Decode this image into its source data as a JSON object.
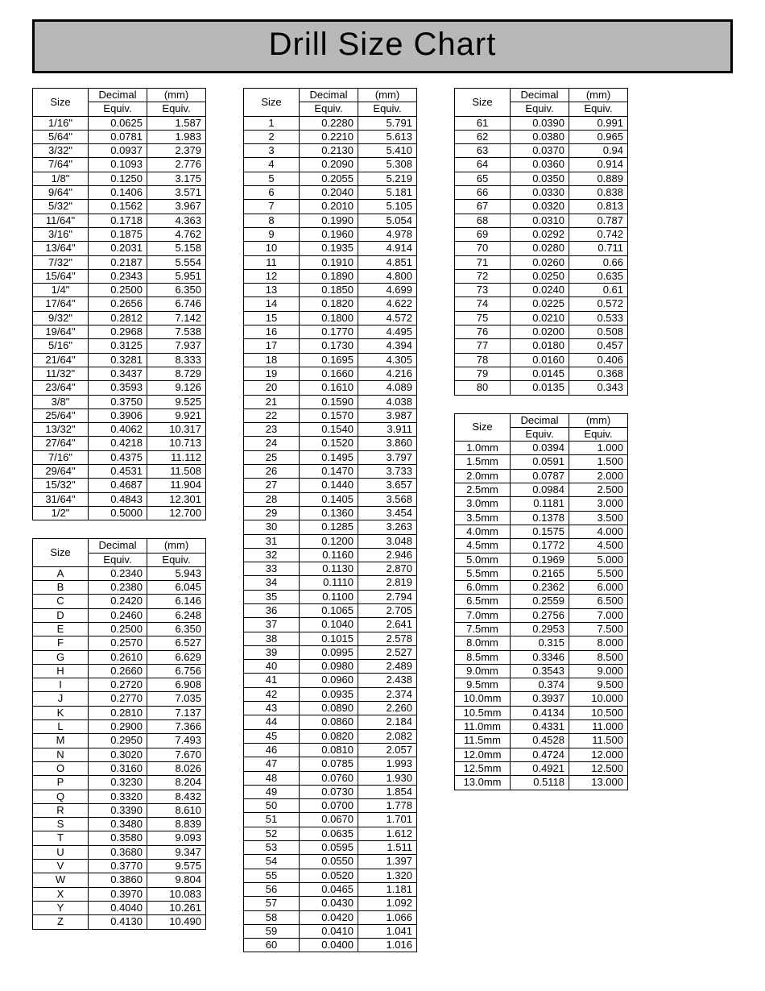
{
  "title": "Drill Size Chart",
  "headers": {
    "size": "Size",
    "decimal_l1": "Decimal",
    "decimal_l2": "Equiv.",
    "mm_l1": "(mm)",
    "mm_l2": "Equiv."
  },
  "tables": {
    "fractional": {
      "rows": [
        [
          "1/16\"",
          "0.0625",
          "1.587"
        ],
        [
          "5/64\"",
          "0.0781",
          "1.983"
        ],
        [
          "3/32\"",
          "0.0937",
          "2.379"
        ],
        [
          "7/64\"",
          "0.1093",
          "2.776"
        ],
        [
          "1/8\"",
          "0.1250",
          "3.175"
        ],
        [
          "9/64\"",
          "0.1406",
          "3.571"
        ],
        [
          "5/32\"",
          "0.1562",
          "3.967"
        ],
        [
          "11/64\"",
          "0.1718",
          "4.363"
        ],
        [
          "3/16\"",
          "0.1875",
          "4.762"
        ],
        [
          "13/64\"",
          "0.2031",
          "5.158"
        ],
        [
          "7/32\"",
          "0.2187",
          "5.554"
        ],
        [
          "15/64\"",
          "0.2343",
          "5.951"
        ],
        [
          "1/4\"",
          "0.2500",
          "6.350"
        ],
        [
          "17/64\"",
          "0.2656",
          "6.746"
        ],
        [
          "9/32\"",
          "0.2812",
          "7.142"
        ],
        [
          "19/64\"",
          "0.2968",
          "7.538"
        ],
        [
          "5/16\"",
          "0.3125",
          "7.937"
        ],
        [
          "21/64\"",
          "0.3281",
          "8.333"
        ],
        [
          "11/32\"",
          "0.3437",
          "8.729"
        ],
        [
          "23/64\"",
          "0.3593",
          "9.126"
        ],
        [
          "3/8\"",
          "0.3750",
          "9.525"
        ],
        [
          "25/64\"",
          "0.3906",
          "9.921"
        ],
        [
          "13/32\"",
          "0.4062",
          "10.317"
        ],
        [
          "27/64\"",
          "0.4218",
          "10.713"
        ],
        [
          "7/16\"",
          "0.4375",
          "11.112"
        ],
        [
          "29/64\"",
          "0.4531",
          "11.508"
        ],
        [
          "15/32\"",
          "0.4687",
          "11.904"
        ],
        [
          "31/64\"",
          "0.4843",
          "12.301"
        ],
        [
          "1/2\"",
          "0.5000",
          "12.700"
        ]
      ]
    },
    "letter": {
      "rows": [
        [
          "A",
          "0.2340",
          "5.943"
        ],
        [
          "B",
          "0.2380",
          "6.045"
        ],
        [
          "C",
          "0.2420",
          "6.146"
        ],
        [
          "D",
          "0.2460",
          "6.248"
        ],
        [
          "E",
          "0.2500",
          "6.350"
        ],
        [
          "F",
          "0.2570",
          "6.527"
        ],
        [
          "G",
          "0.2610",
          "6.629"
        ],
        [
          "H",
          "0.2660",
          "6.756"
        ],
        [
          "I",
          "0.2720",
          "6.908"
        ],
        [
          "J",
          "0.2770",
          "7.035"
        ],
        [
          "K",
          "0.2810",
          "7.137"
        ],
        [
          "L",
          "0.2900",
          "7.366"
        ],
        [
          "M",
          "0.2950",
          "7.493"
        ],
        [
          "N",
          "0.3020",
          "7.670"
        ],
        [
          "O",
          "0.3160",
          "8.026"
        ],
        [
          "P",
          "0.3230",
          "8.204"
        ],
        [
          "Q",
          "0.3320",
          "8.432"
        ],
        [
          "R",
          "0.3390",
          "8.610"
        ],
        [
          "S",
          "0.3480",
          "8.839"
        ],
        [
          "T",
          "0.3580",
          "9.093"
        ],
        [
          "U",
          "0.3680",
          "9.347"
        ],
        [
          "V",
          "0.3770",
          "9.575"
        ],
        [
          "W",
          "0.3860",
          "9.804"
        ],
        [
          "X",
          "0.3970",
          "10.083"
        ],
        [
          "Y",
          "0.4040",
          "10.261"
        ],
        [
          "Z",
          "0.4130",
          "10.490"
        ]
      ]
    },
    "number": {
      "rows": [
        [
          "1",
          "0.2280",
          "5.791"
        ],
        [
          "2",
          "0.2210",
          "5.613"
        ],
        [
          "3",
          "0.2130",
          "5.410"
        ],
        [
          "4",
          "0.2090",
          "5.308"
        ],
        [
          "5",
          "0.2055",
          "5.219"
        ],
        [
          "6",
          "0.2040",
          "5.181"
        ],
        [
          "7",
          "0.2010",
          "5.105"
        ],
        [
          "8",
          "0.1990",
          "5.054"
        ],
        [
          "9",
          "0.1960",
          "4.978"
        ],
        [
          "10",
          "0.1935",
          "4.914"
        ],
        [
          "11",
          "0.1910",
          "4.851"
        ],
        [
          "12",
          "0.1890",
          "4.800"
        ],
        [
          "13",
          "0.1850",
          "4.699"
        ],
        [
          "14",
          "0.1820",
          "4.622"
        ],
        [
          "15",
          "0.1800",
          "4.572"
        ],
        [
          "16",
          "0.1770",
          "4.495"
        ],
        [
          "17",
          "0.1730",
          "4.394"
        ],
        [
          "18",
          "0.1695",
          "4.305"
        ],
        [
          "19",
          "0.1660",
          "4.216"
        ],
        [
          "20",
          "0.1610",
          "4.089"
        ],
        [
          "21",
          "0.1590",
          "4.038"
        ],
        [
          "22",
          "0.1570",
          "3.987"
        ],
        [
          "23",
          "0.1540",
          "3.911"
        ],
        [
          "24",
          "0.1520",
          "3.860"
        ],
        [
          "25",
          "0.1495",
          "3.797"
        ],
        [
          "26",
          "0.1470",
          "3.733"
        ],
        [
          "27",
          "0.1440",
          "3.657"
        ],
        [
          "28",
          "0.1405",
          "3.568"
        ],
        [
          "29",
          "0.1360",
          "3.454"
        ],
        [
          "30",
          "0.1285",
          "3.263"
        ],
        [
          "31",
          "0.1200",
          "3.048"
        ],
        [
          "32",
          "0.1160",
          "2.946"
        ],
        [
          "33",
          "0.1130",
          "2.870"
        ],
        [
          "34",
          "0.1110",
          "2.819"
        ],
        [
          "35",
          "0.1100",
          "2.794"
        ],
        [
          "36",
          "0.1065",
          "2.705"
        ],
        [
          "37",
          "0.1040",
          "2.641"
        ],
        [
          "38",
          "0.1015",
          "2.578"
        ],
        [
          "39",
          "0.0995",
          "2.527"
        ],
        [
          "40",
          "0.0980",
          "2.489"
        ],
        [
          "41",
          "0.0960",
          "2.438"
        ],
        [
          "42",
          "0.0935",
          "2.374"
        ],
        [
          "43",
          "0.0890",
          "2.260"
        ],
        [
          "44",
          "0.0860",
          "2.184"
        ],
        [
          "45",
          "0.0820",
          "2.082"
        ],
        [
          "46",
          "0.0810",
          "2.057"
        ],
        [
          "47",
          "0.0785",
          "1.993"
        ],
        [
          "48",
          "0.0760",
          "1.930"
        ],
        [
          "49",
          "0.0730",
          "1.854"
        ],
        [
          "50",
          "0.0700",
          "1.778"
        ],
        [
          "51",
          "0.0670",
          "1.701"
        ],
        [
          "52",
          "0.0635",
          "1.612"
        ],
        [
          "53",
          "0.0595",
          "1.511"
        ],
        [
          "54",
          "0.0550",
          "1.397"
        ],
        [
          "55",
          "0.0520",
          "1.320"
        ],
        [
          "56",
          "0.0465",
          "1.181"
        ],
        [
          "57",
          "0.0430",
          "1.092"
        ],
        [
          "58",
          "0.0420",
          "1.066"
        ],
        [
          "59",
          "0.0410",
          "1.041"
        ],
        [
          "60",
          "0.0400",
          "1.016"
        ]
      ]
    },
    "number2": {
      "rows": [
        [
          "61",
          "0.0390",
          "0.991"
        ],
        [
          "62",
          "0.0380",
          "0.965"
        ],
        [
          "63",
          "0.0370",
          "0.94"
        ],
        [
          "64",
          "0.0360",
          "0.914"
        ],
        [
          "65",
          "0.0350",
          "0.889"
        ],
        [
          "66",
          "0.0330",
          "0.838"
        ],
        [
          "67",
          "0.0320",
          "0.813"
        ],
        [
          "68",
          "0.0310",
          "0.787"
        ],
        [
          "69",
          "0.0292",
          "0.742"
        ],
        [
          "70",
          "0.0280",
          "0.711"
        ],
        [
          "71",
          "0.0260",
          "0.66"
        ],
        [
          "72",
          "0.0250",
          "0.635"
        ],
        [
          "73",
          "0.0240",
          "0.61"
        ],
        [
          "74",
          "0.0225",
          "0.572"
        ],
        [
          "75",
          "0.0210",
          "0.533"
        ],
        [
          "76",
          "0.0200",
          "0.508"
        ],
        [
          "77",
          "0.0180",
          "0.457"
        ],
        [
          "78",
          "0.0160",
          "0.406"
        ],
        [
          "79",
          "0.0145",
          "0.368"
        ],
        [
          "80",
          "0.0135",
          "0.343"
        ]
      ]
    },
    "metric": {
      "rows": [
        [
          "1.0mm",
          "0.0394",
          "1.000"
        ],
        [
          "1.5mm",
          "0.0591",
          "1.500"
        ],
        [
          "2.0mm",
          "0.0787",
          "2.000"
        ],
        [
          "2.5mm",
          "0.0984",
          "2.500"
        ],
        [
          "3.0mm",
          "0.1181",
          "3.000"
        ],
        [
          "3.5mm",
          "0.1378",
          "3.500"
        ],
        [
          "4.0mm",
          "0.1575",
          "4.000"
        ],
        [
          "4.5mm",
          "0.1772",
          "4.500"
        ],
        [
          "5.0mm",
          "0.1969",
          "5.000"
        ],
        [
          "5.5mm",
          "0.2165",
          "5.500"
        ],
        [
          "6.0mm",
          "0.2362",
          "6.000"
        ],
        [
          "6.5mm",
          "0.2559",
          "6.500"
        ],
        [
          "7.0mm",
          "0.2756",
          "7.000"
        ],
        [
          "7.5mm",
          "0.2953",
          "7.500"
        ],
        [
          "8.0mm",
          "0.315",
          "8.000"
        ],
        [
          "8.5mm",
          "0.3346",
          "8.500"
        ],
        [
          "9.0mm",
          "0.3543",
          "9.000"
        ],
        [
          "9.5mm",
          "0.374",
          "9.500"
        ],
        [
          "10.0mm",
          "0.3937",
          "10.000"
        ],
        [
          "10.5mm",
          "0.4134",
          "10.500"
        ],
        [
          "11.0mm",
          "0.4331",
          "11.000"
        ],
        [
          "11.5mm",
          "0.4528",
          "11.500"
        ],
        [
          "12.0mm",
          "0.4724",
          "12.000"
        ],
        [
          "12.5mm",
          "0.4921",
          "12.500"
        ],
        [
          "13.0mm",
          "0.5118",
          "13.000"
        ]
      ]
    }
  }
}
